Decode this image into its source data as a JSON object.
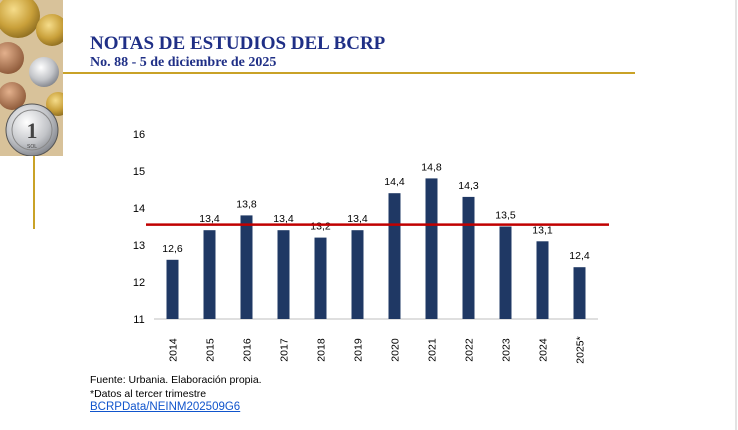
{
  "header": {
    "title": "NOTAS DE ESTUDIOS DEL BCRP",
    "subtitle": "No. 88 - 5 de diciembre de 2025"
  },
  "coin": {
    "value": "1",
    "text": "SOL"
  },
  "colors": {
    "title": "#1f2f86",
    "bar": "#1f3864",
    "average_line": "#c00000",
    "gold": "#c9a227"
  },
  "chart_data": {
    "type": "bar",
    "title": "",
    "xlabel": "",
    "ylabel": "",
    "ylim": [
      11,
      16
    ],
    "yticks": [
      "16",
      "15",
      "14",
      "13",
      "12",
      "11"
    ],
    "categories": [
      "2014",
      "2015",
      "2016",
      "2017",
      "2018",
      "2019",
      "2020",
      "2021",
      "2022",
      "2023",
      "2024",
      "2025*"
    ],
    "values": [
      12.6,
      13.4,
      13.8,
      13.4,
      13.2,
      13.4,
      14.4,
      14.8,
      14.3,
      13.5,
      13.1,
      12.4
    ],
    "value_labels": [
      "12,6",
      "13,4",
      "13,8",
      "13,4",
      "13,2",
      "13,4",
      "14,4",
      "14,8",
      "14,3",
      "13,5",
      "13,1",
      "12,4"
    ],
    "reference_line": 13.55,
    "grid": false
  },
  "footer": {
    "source": "Fuente: Urbania. Elaboración propia.",
    "note": "*Datos al tercer trimestre",
    "link": "BCRPData/NEINM202509G6"
  }
}
